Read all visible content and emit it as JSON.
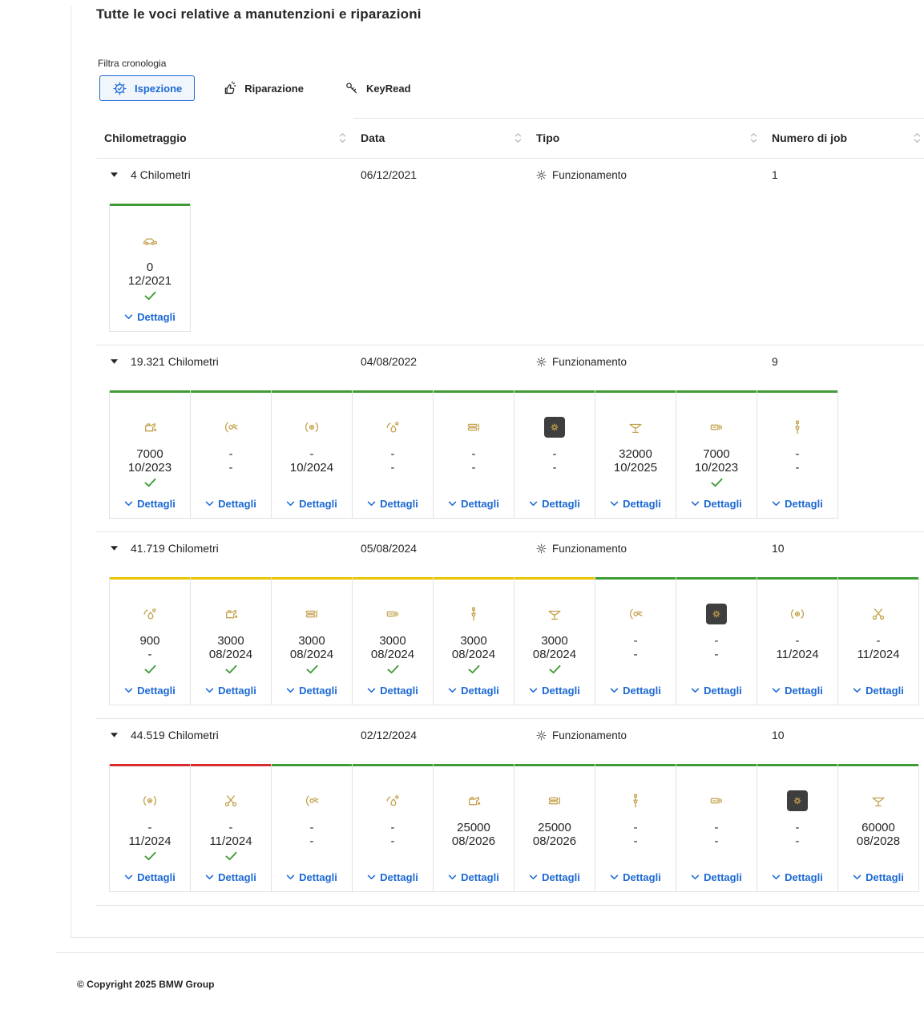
{
  "page": {
    "title": "Tutte le voci relative a manutenzioni e riparazioni",
    "filter_section_label": "Filtra cronologia",
    "footer_copyright": "© Copyright 2025 BMW Group"
  },
  "colors": {
    "accent_blue": "#1c69d4",
    "status_green": "#3f9c35",
    "status_yellow": "#e9c400",
    "status_red": "#d92b2b",
    "icon_gold": "#c3a04a",
    "dark_tile": "#3e3e3e",
    "check_green": "#3f9c35"
  },
  "filters": [
    {
      "label": "Ispezione",
      "icon": "inspection-gear-icon",
      "active": true
    },
    {
      "label": "Riparazione",
      "icon": "repair-icon",
      "active": false
    },
    {
      "label": "KeyRead",
      "icon": "key-icon",
      "active": false
    }
  ],
  "table": {
    "columns": [
      {
        "label": "Chilometraggio"
      },
      {
        "label": "Data"
      },
      {
        "label": "Tipo"
      },
      {
        "label": "Numero di job"
      }
    ],
    "details_label": "Dettagli",
    "rows": [
      {
        "mileage": "4 Chilometri",
        "date": "06/12/2021",
        "type": "Funzionamento",
        "type_icon": "gear-icon",
        "jobs": "1",
        "cards": [
          {
            "icon": "car-icon",
            "value": "0",
            "date": "12/2021",
            "done": true,
            "status": "green"
          }
        ]
      },
      {
        "mileage": "19.321 Chilometri",
        "date": "04/08/2022",
        "type": "Funzionamento",
        "type_icon": "gear-icon",
        "jobs": "9",
        "cards": [
          {
            "icon": "oil-can-icon",
            "value": "7000",
            "date": "10/2023",
            "done": true,
            "status": "green"
          },
          {
            "icon": "brake-wear-icon",
            "value": "-",
            "date": "-",
            "done": false,
            "status": "green"
          },
          {
            "icon": "headlight-icon",
            "value": "-",
            "date": "10/2024",
            "done": false,
            "status": "green"
          },
          {
            "icon": "brake-fluid-icon",
            "value": "-",
            "date": "-",
            "done": false,
            "status": "green"
          },
          {
            "icon": "brake-pads-front-icon",
            "value": "-",
            "date": "-",
            "done": false,
            "status": "green"
          },
          {
            "icon": "engine-check-icon",
            "value": "-",
            "date": "-",
            "done": false,
            "status": "green"
          },
          {
            "icon": "vehicle-inspection-icon",
            "value": "32000",
            "date": "10/2025",
            "done": false,
            "status": "green"
          },
          {
            "icon": "brake-pads-rear-icon",
            "value": "7000",
            "date": "10/2023",
            "done": true,
            "status": "green"
          },
          {
            "icon": "spark-plug-icon",
            "value": "-",
            "date": "-",
            "done": false,
            "status": "green"
          }
        ]
      },
      {
        "mileage": "41.719 Chilometri",
        "date": "05/08/2024",
        "type": "Funzionamento",
        "type_icon": "gear-icon",
        "jobs": "10",
        "cards": [
          {
            "icon": "brake-fluid-icon",
            "value": "900",
            "date": "-",
            "done": true,
            "status": "yellow"
          },
          {
            "icon": "oil-can-icon",
            "value": "3000",
            "date": "08/2024",
            "done": true,
            "status": "yellow"
          },
          {
            "icon": "brake-pads-front-icon",
            "value": "3000",
            "date": "08/2024",
            "done": true,
            "status": "yellow"
          },
          {
            "icon": "brake-pads-rear-icon",
            "value": "3000",
            "date": "08/2024",
            "done": true,
            "status": "yellow"
          },
          {
            "icon": "spark-plug-icon",
            "value": "3000",
            "date": "08/2024",
            "done": true,
            "status": "yellow"
          },
          {
            "icon": "vehicle-inspection-icon",
            "value": "3000",
            "date": "08/2024",
            "done": true,
            "status": "yellow"
          },
          {
            "icon": "brake-wear-icon",
            "value": "-",
            "date": "-",
            "done": false,
            "status": "green"
          },
          {
            "icon": "engine-check-icon",
            "value": "-",
            "date": "-",
            "done": false,
            "status": "green"
          },
          {
            "icon": "headlight-icon",
            "value": "-",
            "date": "11/2024",
            "done": false,
            "status": "green"
          },
          {
            "icon": "scissors-icon",
            "value": "-",
            "date": "11/2024",
            "done": false,
            "status": "green"
          }
        ]
      },
      {
        "mileage": "44.519 Chilometri",
        "date": "02/12/2024",
        "type": "Funzionamento",
        "type_icon": "gear-icon",
        "jobs": "10",
        "cards": [
          {
            "icon": "headlight-icon",
            "value": "-",
            "date": "11/2024",
            "done": true,
            "status": "red"
          },
          {
            "icon": "scissors-icon",
            "value": "-",
            "date": "11/2024",
            "done": true,
            "status": "red"
          },
          {
            "icon": "brake-wear-icon",
            "value": "-",
            "date": "-",
            "done": false,
            "status": "green"
          },
          {
            "icon": "brake-fluid-icon",
            "value": "-",
            "date": "-",
            "done": false,
            "status": "green"
          },
          {
            "icon": "oil-can-icon",
            "value": "25000",
            "date": "08/2026",
            "done": false,
            "status": "green"
          },
          {
            "icon": "brake-pads-front-icon",
            "value": "25000",
            "date": "08/2026",
            "done": false,
            "status": "green"
          },
          {
            "icon": "spark-plug-icon",
            "value": "-",
            "date": "-",
            "done": false,
            "status": "green"
          },
          {
            "icon": "brake-pads-rear-icon",
            "value": "-",
            "date": "-",
            "done": false,
            "status": "green"
          },
          {
            "icon": "engine-check-icon",
            "value": "-",
            "date": "-",
            "done": false,
            "status": "green"
          },
          {
            "icon": "vehicle-inspection-icon",
            "value": "60000",
            "date": "08/2028",
            "done": false,
            "status": "green"
          }
        ]
      }
    ]
  }
}
